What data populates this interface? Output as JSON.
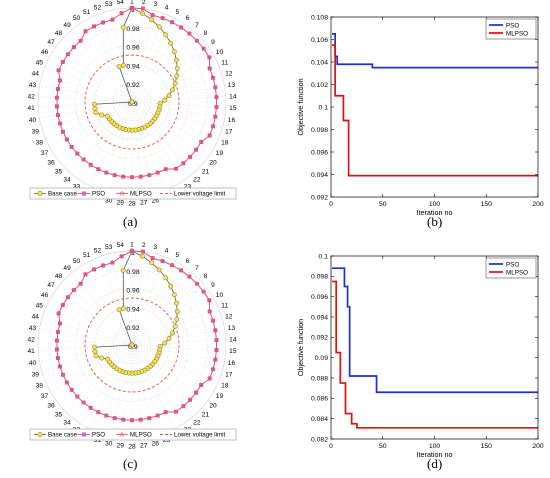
{
  "panels": [
    {
      "label": "(a)",
      "chart_data": {
        "type": "radar",
        "theta_labels": [
          "1",
          "2",
          "3",
          "4",
          "5",
          "6",
          "7",
          "8",
          "9",
          "10",
          "11",
          "12",
          "13",
          "14",
          "15",
          "16",
          "17",
          "18",
          "19",
          "20",
          "21",
          "22",
          "23",
          "24",
          "25",
          "26",
          "27",
          "28",
          "29",
          "30",
          "31",
          "32",
          "33",
          "34",
          "35",
          "36",
          "37",
          "38",
          "39",
          "40",
          "41",
          "42",
          "43",
          "44",
          "45",
          "46",
          "47",
          "48",
          "49",
          "50",
          "51",
          "52",
          "53",
          "54"
        ],
        "r_ticks": [
          "0.9",
          "0.92",
          "0.94",
          "0.96",
          "0.98",
          "1"
        ],
        "r_range": [
          0.9,
          1.0
        ],
        "series": [
          {
            "name": "Base case",
            "color": "#b5a300",
            "marker": "circle",
            "values": [
              1.0,
              0.995,
              0.99,
              0.985,
              0.98,
              0.975,
              0.97,
              0.965,
              0.96,
              0.955,
              0.95,
              0.945,
              0.94,
              0.935,
              0.93,
              0.93,
              0.93,
              0.93,
              0.93,
              0.93,
              0.93,
              0.93,
              0.93,
              0.93,
              0.93,
              0.93,
              0.93,
              0.93,
              0.93,
              0.93,
              0.93,
              0.93,
              0.93,
              0.93,
              0.93,
              0.93,
              0.93,
              0.935,
              0.94,
              0.94,
              0.94,
              0.9,
              0.9,
              0.9,
              0.9,
              0.9,
              0.9,
              0.9,
              0.9,
              0.9,
              0.9,
              0.94,
              0.94,
              0.98
            ]
          },
          {
            "name": "PSO",
            "color": "#cc33aa",
            "marker": "square",
            "values": [
              1.0,
              1.0,
              0.995,
              0.995,
              0.995,
              0.995,
              0.995,
              0.995,
              0.995,
              0.995,
              0.99,
              0.99,
              0.99,
              0.99,
              0.99,
              0.99,
              0.99,
              0.99,
              0.985,
              0.985,
              0.985,
              0.985,
              0.985,
              0.98,
              0.98,
              0.98,
              0.98,
              0.98,
              0.98,
              0.98,
              0.98,
              0.98,
              0.98,
              0.98,
              0.98,
              0.98,
              0.98,
              0.98,
              0.98,
              0.98,
              0.98,
              0.98,
              0.98,
              0.98,
              0.985,
              0.985,
              0.985,
              0.985,
              0.985,
              0.99,
              0.99,
              0.99,
              0.99,
              0.995
            ]
          },
          {
            "name": "MLPSO",
            "color": "#e05555",
            "marker": "star",
            "values": [
              1.0,
              1.0,
              0.995,
              0.995,
              0.995,
              0.995,
              0.995,
              0.995,
              0.995,
              0.995,
              0.99,
              0.99,
              0.99,
              0.99,
              0.99,
              0.99,
              0.99,
              0.99,
              0.985,
              0.985,
              0.985,
              0.985,
              0.985,
              0.98,
              0.98,
              0.98,
              0.98,
              0.98,
              0.98,
              0.98,
              0.98,
              0.98,
              0.98,
              0.98,
              0.98,
              0.98,
              0.98,
              0.98,
              0.98,
              0.98,
              0.98,
              0.98,
              0.98,
              0.98,
              0.985,
              0.985,
              0.985,
              0.985,
              0.985,
              0.99,
              0.99,
              0.99,
              0.99,
              0.995
            ]
          },
          {
            "name": "Lower voltage limit",
            "color": "#e05555",
            "style": "dashed",
            "constant": 0.95
          }
        ],
        "legend": [
          "Base case",
          "PSO",
          "MLPSO",
          "Lower voltage limit"
        ],
        "legend_position": "bottom"
      }
    },
    {
      "label": "(b)",
      "chart_data": {
        "type": "line",
        "xlabel": "Iteration no",
        "ylabel": "Objective function",
        "xlim": [
          0,
          200
        ],
        "ylim": [
          0.092,
          0.108
        ],
        "xticks": [
          "0",
          "50",
          "100",
          "150",
          "200"
        ],
        "yticks": [
          "0.092",
          "0.094",
          "0.096",
          "0.098",
          "0.1",
          "0.102",
          "0.104",
          "0.106",
          "0.108"
        ],
        "series": [
          {
            "name": "PSO",
            "color": "#1f2fd0",
            "points": [
              [
                1,
                0.1065
              ],
              [
                4,
                0.1065
              ],
              [
                4,
                0.1045
              ],
              [
                6,
                0.1045
              ],
              [
                6,
                0.1038
              ],
              [
                40,
                0.1038
              ],
              [
                40,
                0.1035
              ],
              [
                200,
                0.1035
              ]
            ]
          },
          {
            "name": "MLPSO",
            "color": "#e01010",
            "points": [
              [
                1,
                0.1055
              ],
              [
                4,
                0.1055
              ],
              [
                4,
                0.101
              ],
              [
                12,
                0.101
              ],
              [
                12,
                0.0988
              ],
              [
                17,
                0.0988
              ],
              [
                17,
                0.0939
              ],
              [
                200,
                0.0939
              ]
            ]
          }
        ],
        "legend_position": "top-right"
      }
    },
    {
      "label": "(c)",
      "chart_data": {
        "type": "radar",
        "theta_labels": [
          "1",
          "2",
          "3",
          "4",
          "5",
          "6",
          "7",
          "8",
          "9",
          "10",
          "11",
          "12",
          "13",
          "14",
          "15",
          "16",
          "17",
          "18",
          "19",
          "20",
          "21",
          "22",
          "23",
          "24",
          "25",
          "26",
          "27",
          "28",
          "29",
          "30",
          "31",
          "32",
          "33",
          "34",
          "35",
          "36",
          "37",
          "38",
          "39",
          "40",
          "41",
          "42",
          "43",
          "44",
          "45",
          "46",
          "47",
          "48",
          "49",
          "50",
          "51",
          "52",
          "53",
          "54"
        ],
        "r_ticks": [
          "0.9",
          "0.92",
          "0.94",
          "0.96",
          "0.98",
          "1"
        ],
        "r_range": [
          0.9,
          1.0
        ],
        "series": [
          {
            "name": "Base case",
            "color": "#b5a300",
            "marker": "circle",
            "values": [
              1.0,
              0.995,
              0.99,
              0.985,
              0.98,
              0.975,
              0.97,
              0.965,
              0.96,
              0.955,
              0.95,
              0.945,
              0.94,
              0.935,
              0.93,
              0.93,
              0.93,
              0.93,
              0.93,
              0.93,
              0.93,
              0.93,
              0.93,
              0.93,
              0.93,
              0.93,
              0.93,
              0.93,
              0.93,
              0.93,
              0.93,
              0.93,
              0.93,
              0.93,
              0.93,
              0.93,
              0.93,
              0.935,
              0.94,
              0.94,
              0.94,
              0.9,
              0.9,
              0.9,
              0.9,
              0.9,
              0.9,
              0.9,
              0.9,
              0.9,
              0.9,
              0.94,
              0.94,
              0.98
            ]
          },
          {
            "name": "PSO",
            "color": "#cc33aa",
            "marker": "square",
            "values": [
              1.0,
              1.0,
              0.995,
              0.995,
              0.995,
              0.995,
              0.995,
              0.995,
              0.995,
              0.995,
              0.99,
              0.99,
              0.99,
              0.99,
              0.99,
              0.99,
              0.99,
              0.99,
              0.985,
              0.985,
              0.985,
              0.985,
              0.985,
              0.98,
              0.98,
              0.98,
              0.98,
              0.98,
              0.98,
              0.98,
              0.98,
              0.98,
              0.98,
              0.98,
              0.98,
              0.98,
              0.98,
              0.98,
              0.98,
              0.98,
              0.98,
              0.98,
              0.98,
              0.98,
              0.985,
              0.985,
              0.985,
              0.985,
              0.985,
              0.99,
              0.99,
              0.99,
              0.99,
              0.995
            ]
          },
          {
            "name": "MLPSO",
            "color": "#e05555",
            "marker": "star",
            "values": [
              1.0,
              1.0,
              0.995,
              0.995,
              0.995,
              0.995,
              0.995,
              0.995,
              0.995,
              0.995,
              0.99,
              0.99,
              0.99,
              0.99,
              0.99,
              0.99,
              0.99,
              0.99,
              0.985,
              0.985,
              0.985,
              0.985,
              0.985,
              0.98,
              0.98,
              0.98,
              0.98,
              0.98,
              0.98,
              0.98,
              0.98,
              0.98,
              0.98,
              0.98,
              0.98,
              0.98,
              0.98,
              0.98,
              0.98,
              0.98,
              0.98,
              0.98,
              0.98,
              0.98,
              0.985,
              0.985,
              0.985,
              0.985,
              0.985,
              0.99,
              0.99,
              0.99,
              0.99,
              0.995
            ]
          },
          {
            "name": "Lower voltage limit",
            "color": "#e05555",
            "style": "dashed",
            "constant": 0.95
          }
        ],
        "legend": [
          "Base case",
          "PSO",
          "MLPSO",
          "Lower voltage limit"
        ],
        "legend_position": "bottom"
      }
    },
    {
      "label": "(d)",
      "chart_data": {
        "type": "line",
        "xlabel": "Iteration no",
        "ylabel": "Objective function",
        "xlim": [
          0,
          200
        ],
        "ylim": [
          0.082,
          0.1
        ],
        "xticks": [
          "0",
          "50",
          "100",
          "150",
          "200"
        ],
        "yticks": [
          "0.082",
          "0.084",
          "0.086",
          "0.088",
          "0.09",
          "0.092",
          "0.094",
          "0.096",
          "0.098",
          "0.1"
        ],
        "series": [
          {
            "name": "PSO",
            "color": "#1f2fd0",
            "points": [
              [
                1,
                0.0988
              ],
              [
                13,
                0.0988
              ],
              [
                13,
                0.097
              ],
              [
                16,
                0.097
              ],
              [
                16,
                0.095
              ],
              [
                18,
                0.095
              ],
              [
                18,
                0.0882
              ],
              [
                44,
                0.0882
              ],
              [
                44,
                0.0866
              ],
              [
                200,
                0.0866
              ]
            ]
          },
          {
            "name": "MLPSO",
            "color": "#e01010",
            "points": [
              [
                1,
                0.0975
              ],
              [
                5,
                0.0975
              ],
              [
                5,
                0.0905
              ],
              [
                9,
                0.0905
              ],
              [
                9,
                0.0875
              ],
              [
                14,
                0.0875
              ],
              [
                14,
                0.0845
              ],
              [
                20,
                0.0845
              ],
              [
                20,
                0.0835
              ],
              [
                25,
                0.0835
              ],
              [
                25,
                0.0831
              ],
              [
                200,
                0.0831
              ]
            ]
          }
        ],
        "legend_position": "top-right"
      }
    }
  ]
}
